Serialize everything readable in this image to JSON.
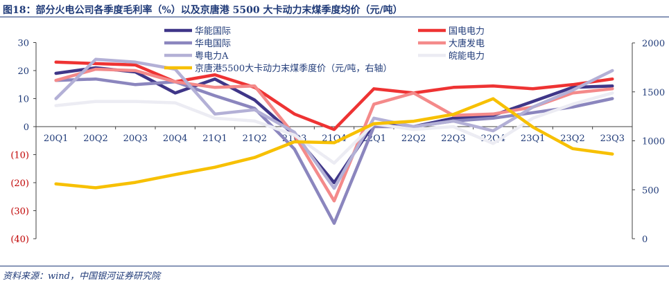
{
  "header": {
    "title": "图18：部分火电公司各季度毛利率（%）以及京唐港 5500 大卡动力末煤季度均价（元/吨）"
  },
  "footer": {
    "source": "资料来源：wind，中国银河证券研究院"
  },
  "colors": {
    "text": "#1f3a78",
    "negative_tick": "#c00000",
    "axis": "#404040"
  },
  "chart_data": {
    "type": "line",
    "categories": [
      "20Q1",
      "20Q2",
      "20Q3",
      "20Q4",
      "21Q1",
      "21Q2",
      "21Q3",
      "21Q4",
      "22Q1",
      "22Q2",
      "22Q3",
      "22Q4",
      "23Q1",
      "23Q2",
      "23Q3"
    ],
    "y_left": {
      "ticks": [
        30,
        20,
        10,
        0,
        -10,
        -20,
        -30,
        -40
      ],
      "tick_labels": [
        "30",
        "20",
        "10",
        "0",
        "(10)",
        "(20)",
        "(30)",
        "(40)"
      ],
      "range": [
        -40,
        30
      ]
    },
    "y_right": {
      "ticks": [
        2000,
        1500,
        1000,
        500,
        0
      ],
      "tick_labels": [
        "2000",
        "1500",
        "1000",
        "500",
        "0"
      ],
      "range": [
        0,
        2000
      ]
    },
    "grid": false,
    "legend_position": "top",
    "series": [
      {
        "name": "华能国际",
        "axis": "left",
        "color": "#3f3688",
        "width": 4.5,
        "values": [
          19,
          21,
          19.5,
          12,
          17,
          9.5,
          -3,
          -20,
          1,
          0,
          3,
          4,
          9,
          14,
          14.5
        ]
      },
      {
        "name": "国电电力",
        "axis": "left",
        "color": "#ee3333",
        "width": 4.5,
        "values": [
          23,
          22.5,
          22,
          16,
          18.5,
          14,
          4.5,
          -1,
          13.5,
          12,
          14,
          14.5,
          13.5,
          15,
          17
        ]
      },
      {
        "name": "华电国际",
        "axis": "left",
        "color": "#8b86be",
        "width": 4.5,
        "values": [
          16.5,
          17,
          15,
          16,
          11,
          6.5,
          -8,
          -34.5,
          0,
          0,
          2,
          3,
          5,
          7,
          10
        ]
      },
      {
        "name": "大唐发电",
        "axis": "left",
        "color": "#f48a8a",
        "width": 4.5,
        "values": [
          16.5,
          20.5,
          20,
          16,
          14,
          14.5,
          -3,
          -26.5,
          8,
          12,
          4,
          4.5,
          7,
          12,
          13.5
        ]
      },
      {
        "name": "粤电力A",
        "axis": "left",
        "color": "#b3b0d6",
        "width": 4.5,
        "values": [
          10,
          24,
          23,
          20.5,
          4.5,
          6,
          -2,
          -22,
          3,
          0,
          2,
          -1.5,
          7,
          13,
          20
        ]
      },
      {
        "name": "皖能电力",
        "axis": "left",
        "color": "#ececf3",
        "width": 4.5,
        "values": [
          7.5,
          9,
          9,
          8.5,
          3,
          2,
          -3,
          -13,
          1,
          -1,
          0,
          -6,
          3,
          8,
          12
        ]
      },
      {
        "name": "京唐港5500大卡动力末煤季度价（元/吨，右轴）",
        "axis": "right",
        "color": "#f7c000",
        "width": 4.5,
        "values": [
          560,
          520,
          575,
          655,
          730,
          830,
          990,
          980,
          1175,
          1200,
          1270,
          1430,
          1140,
          920,
          865
        ]
      }
    ]
  }
}
